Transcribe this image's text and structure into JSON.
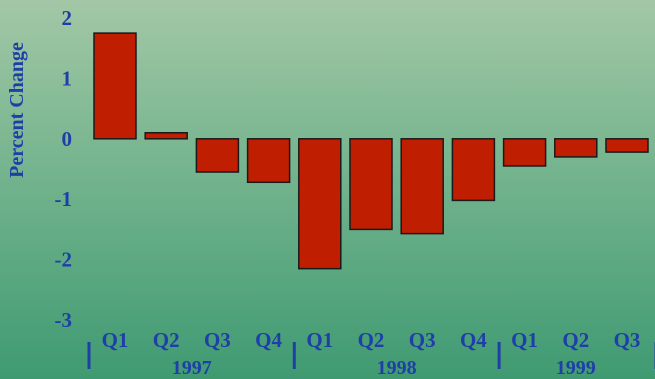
{
  "chart_data": {
    "type": "bar",
    "title": "",
    "ylabel": "Percent Change",
    "ylim": [
      -3,
      2
    ],
    "yticks": [
      "2",
      "1",
      "0",
      "-1",
      "-2",
      "-3"
    ],
    "categories": [
      "Q1",
      "Q2",
      "Q3",
      "Q4",
      "Q1",
      "Q2",
      "Q3",
      "Q4",
      "Q1",
      "Q2",
      "Q3"
    ],
    "groups": [
      {
        "label": "1997",
        "count": 4
      },
      {
        "label": "1998",
        "count": 4
      },
      {
        "label": "1999",
        "count": 3
      }
    ],
    "values": [
      1.75,
      0.1,
      -0.55,
      -0.72,
      -2.15,
      -1.5,
      -1.57,
      -1.02,
      -0.45,
      -0.3,
      -0.22
    ],
    "colors": {
      "bar": "#c01e00",
      "bar_stroke": "#1a1a1a",
      "text": "#1f3fa8"
    },
    "grid": false,
    "legend": "none"
  }
}
